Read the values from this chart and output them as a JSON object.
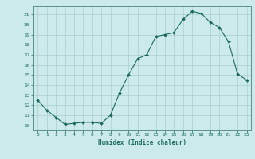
{
  "x": [
    0,
    1,
    2,
    3,
    4,
    5,
    6,
    7,
    8,
    9,
    10,
    11,
    12,
    13,
    14,
    15,
    16,
    17,
    18,
    19,
    20,
    21,
    22,
    23
  ],
  "y": [
    12.5,
    11.5,
    10.8,
    10.1,
    10.2,
    10.3,
    10.3,
    10.2,
    11.0,
    13.2,
    15.0,
    16.6,
    17.0,
    18.8,
    19.0,
    19.2,
    20.5,
    21.3,
    21.1,
    20.2,
    19.7,
    18.3,
    15.1,
    14.5
  ],
  "xlim": [
    -0.5,
    23.5
  ],
  "ylim": [
    9.5,
    21.8
  ],
  "yticks": [
    10,
    11,
    12,
    13,
    14,
    15,
    16,
    17,
    18,
    19,
    20,
    21
  ],
  "xticks": [
    0,
    1,
    2,
    3,
    4,
    5,
    6,
    7,
    8,
    9,
    10,
    11,
    12,
    13,
    14,
    15,
    16,
    17,
    18,
    19,
    20,
    21,
    22,
    23
  ],
  "xlabel": "Humidex (Indice chaleur)",
  "line_color": "#1a6b5a",
  "marker_color": "#1a6b5a",
  "bg_color": "#cceaea",
  "grid_color": "#aacece",
  "axis_color": "#5a9090",
  "tick_color": "#1a6b5a",
  "xlabel_color": "#1a6b5a"
}
